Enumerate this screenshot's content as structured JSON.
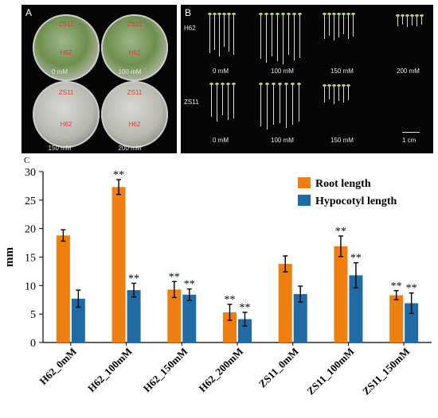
{
  "panelA": {
    "letter": "A",
    "dishes": [
      {
        "label": "0 mM",
        "tag_top": "ZS11",
        "tag_bottom": "H62",
        "green": true
      },
      {
        "label": "100 mM",
        "tag_top": "ZS11",
        "tag_bottom": "H62",
        "green": true
      },
      {
        "label": "150 mM",
        "tag_top": "ZS11",
        "tag_bottom": "H62",
        "green": false
      },
      {
        "label": "200 mM",
        "tag_top": "ZS11",
        "tag_bottom": "H62",
        "green": false
      }
    ]
  },
  "panelB": {
    "letter": "B",
    "row1_label": "H62",
    "row2_label": "ZS11",
    "row1_conc": [
      "0 mM",
      "100 mM",
      "150 mM",
      "200 mM"
    ],
    "row2_conc": [
      "0 mM",
      "100 mM",
      "150 mM"
    ],
    "scale": "1 cm"
  },
  "panelC_letter": "C",
  "chart_data": {
    "type": "bar",
    "categories": [
      "H62_0mM",
      "H62_100mM",
      "H62_150mM",
      "H62_200mM",
      "ZS11_0mM",
      "ZS11_100mM",
      "ZS11_150mM"
    ],
    "series": [
      {
        "name": "Root length",
        "color": "#F07F12",
        "values": [
          18.8,
          27.3,
          9.3,
          5.3,
          13.8,
          16.9,
          8.3
        ],
        "errors": [
          1.0,
          1.3,
          1.4,
          1.4,
          1.4,
          1.8,
          0.8
        ],
        "sig": [
          "",
          "**",
          "**",
          "**",
          "",
          "**",
          "**"
        ]
      },
      {
        "name": "Hypocotyl length",
        "color": "#1F6BA5",
        "values": [
          7.7,
          9.2,
          8.4,
          4.1,
          8.5,
          11.8,
          6.9
        ],
        "errors": [
          1.5,
          1.2,
          1.0,
          1.2,
          1.4,
          2.2,
          1.8
        ],
        "sig": [
          "",
          "**",
          "**",
          "**",
          "",
          "**",
          "**"
        ]
      }
    ],
    "ylabel": "mm",
    "ylim": [
      0,
      30
    ],
    "yticks": [
      "0",
      "5",
      "10",
      "15",
      "20",
      "25",
      "30"
    ],
    "legend": "top-right",
    "grid": false
  }
}
